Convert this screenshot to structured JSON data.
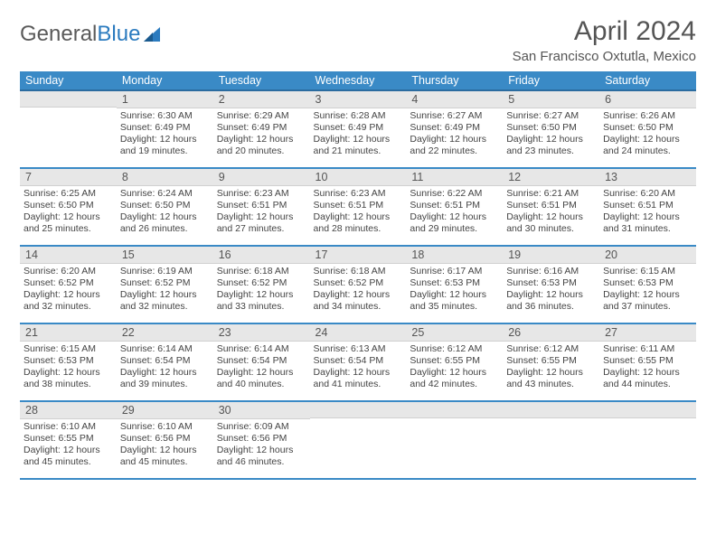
{
  "logo": {
    "text1": "General",
    "text2": "Blue"
  },
  "title": {
    "month": "April 2024",
    "location": "San Francisco Oxtutla, Mexico"
  },
  "colors": {
    "header_bg": "#3a8ac6",
    "header_border": "#2b6ca0",
    "daynum_bg": "#e7e7e7",
    "text": "#444"
  },
  "days_of_week": [
    "Sunday",
    "Monday",
    "Tuesday",
    "Wednesday",
    "Thursday",
    "Friday",
    "Saturday"
  ],
  "weeks": [
    [
      null,
      {
        "n": "1",
        "sr": "Sunrise: 6:30 AM",
        "ss": "Sunset: 6:49 PM",
        "dl1": "Daylight: 12 hours",
        "dl2": "and 19 minutes."
      },
      {
        "n": "2",
        "sr": "Sunrise: 6:29 AM",
        "ss": "Sunset: 6:49 PM",
        "dl1": "Daylight: 12 hours",
        "dl2": "and 20 minutes."
      },
      {
        "n": "3",
        "sr": "Sunrise: 6:28 AM",
        "ss": "Sunset: 6:49 PM",
        "dl1": "Daylight: 12 hours",
        "dl2": "and 21 minutes."
      },
      {
        "n": "4",
        "sr": "Sunrise: 6:27 AM",
        "ss": "Sunset: 6:49 PM",
        "dl1": "Daylight: 12 hours",
        "dl2": "and 22 minutes."
      },
      {
        "n": "5",
        "sr": "Sunrise: 6:27 AM",
        "ss": "Sunset: 6:50 PM",
        "dl1": "Daylight: 12 hours",
        "dl2": "and 23 minutes."
      },
      {
        "n": "6",
        "sr": "Sunrise: 6:26 AM",
        "ss": "Sunset: 6:50 PM",
        "dl1": "Daylight: 12 hours",
        "dl2": "and 24 minutes."
      }
    ],
    [
      {
        "n": "7",
        "sr": "Sunrise: 6:25 AM",
        "ss": "Sunset: 6:50 PM",
        "dl1": "Daylight: 12 hours",
        "dl2": "and 25 minutes."
      },
      {
        "n": "8",
        "sr": "Sunrise: 6:24 AM",
        "ss": "Sunset: 6:50 PM",
        "dl1": "Daylight: 12 hours",
        "dl2": "and 26 minutes."
      },
      {
        "n": "9",
        "sr": "Sunrise: 6:23 AM",
        "ss": "Sunset: 6:51 PM",
        "dl1": "Daylight: 12 hours",
        "dl2": "and 27 minutes."
      },
      {
        "n": "10",
        "sr": "Sunrise: 6:23 AM",
        "ss": "Sunset: 6:51 PM",
        "dl1": "Daylight: 12 hours",
        "dl2": "and 28 minutes."
      },
      {
        "n": "11",
        "sr": "Sunrise: 6:22 AM",
        "ss": "Sunset: 6:51 PM",
        "dl1": "Daylight: 12 hours",
        "dl2": "and 29 minutes."
      },
      {
        "n": "12",
        "sr": "Sunrise: 6:21 AM",
        "ss": "Sunset: 6:51 PM",
        "dl1": "Daylight: 12 hours",
        "dl2": "and 30 minutes."
      },
      {
        "n": "13",
        "sr": "Sunrise: 6:20 AM",
        "ss": "Sunset: 6:51 PM",
        "dl1": "Daylight: 12 hours",
        "dl2": "and 31 minutes."
      }
    ],
    [
      {
        "n": "14",
        "sr": "Sunrise: 6:20 AM",
        "ss": "Sunset: 6:52 PM",
        "dl1": "Daylight: 12 hours",
        "dl2": "and 32 minutes."
      },
      {
        "n": "15",
        "sr": "Sunrise: 6:19 AM",
        "ss": "Sunset: 6:52 PM",
        "dl1": "Daylight: 12 hours",
        "dl2": "and 32 minutes."
      },
      {
        "n": "16",
        "sr": "Sunrise: 6:18 AM",
        "ss": "Sunset: 6:52 PM",
        "dl1": "Daylight: 12 hours",
        "dl2": "and 33 minutes."
      },
      {
        "n": "17",
        "sr": "Sunrise: 6:18 AM",
        "ss": "Sunset: 6:52 PM",
        "dl1": "Daylight: 12 hours",
        "dl2": "and 34 minutes."
      },
      {
        "n": "18",
        "sr": "Sunrise: 6:17 AM",
        "ss": "Sunset: 6:53 PM",
        "dl1": "Daylight: 12 hours",
        "dl2": "and 35 minutes."
      },
      {
        "n": "19",
        "sr": "Sunrise: 6:16 AM",
        "ss": "Sunset: 6:53 PM",
        "dl1": "Daylight: 12 hours",
        "dl2": "and 36 minutes."
      },
      {
        "n": "20",
        "sr": "Sunrise: 6:15 AM",
        "ss": "Sunset: 6:53 PM",
        "dl1": "Daylight: 12 hours",
        "dl2": "and 37 minutes."
      }
    ],
    [
      {
        "n": "21",
        "sr": "Sunrise: 6:15 AM",
        "ss": "Sunset: 6:53 PM",
        "dl1": "Daylight: 12 hours",
        "dl2": "and 38 minutes."
      },
      {
        "n": "22",
        "sr": "Sunrise: 6:14 AM",
        "ss": "Sunset: 6:54 PM",
        "dl1": "Daylight: 12 hours",
        "dl2": "and 39 minutes."
      },
      {
        "n": "23",
        "sr": "Sunrise: 6:14 AM",
        "ss": "Sunset: 6:54 PM",
        "dl1": "Daylight: 12 hours",
        "dl2": "and 40 minutes."
      },
      {
        "n": "24",
        "sr": "Sunrise: 6:13 AM",
        "ss": "Sunset: 6:54 PM",
        "dl1": "Daylight: 12 hours",
        "dl2": "and 41 minutes."
      },
      {
        "n": "25",
        "sr": "Sunrise: 6:12 AM",
        "ss": "Sunset: 6:55 PM",
        "dl1": "Daylight: 12 hours",
        "dl2": "and 42 minutes."
      },
      {
        "n": "26",
        "sr": "Sunrise: 6:12 AM",
        "ss": "Sunset: 6:55 PM",
        "dl1": "Daylight: 12 hours",
        "dl2": "and 43 minutes."
      },
      {
        "n": "27",
        "sr": "Sunrise: 6:11 AM",
        "ss": "Sunset: 6:55 PM",
        "dl1": "Daylight: 12 hours",
        "dl2": "and 44 minutes."
      }
    ],
    [
      {
        "n": "28",
        "sr": "Sunrise: 6:10 AM",
        "ss": "Sunset: 6:55 PM",
        "dl1": "Daylight: 12 hours",
        "dl2": "and 45 minutes."
      },
      {
        "n": "29",
        "sr": "Sunrise: 6:10 AM",
        "ss": "Sunset: 6:56 PM",
        "dl1": "Daylight: 12 hours",
        "dl2": "and 45 minutes."
      },
      {
        "n": "30",
        "sr": "Sunrise: 6:09 AM",
        "ss": "Sunset: 6:56 PM",
        "dl1": "Daylight: 12 hours",
        "dl2": "and 46 minutes."
      },
      null,
      null,
      null,
      null
    ]
  ]
}
